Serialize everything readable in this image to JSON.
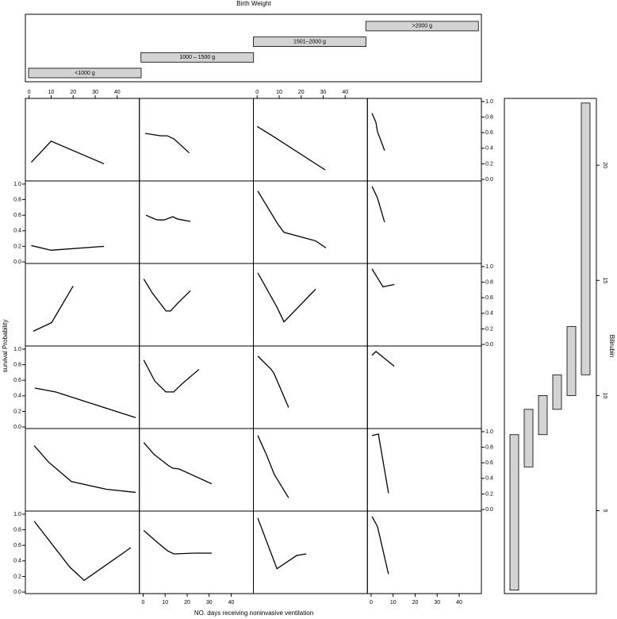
{
  "chart_data": {
    "type": "line",
    "xlabel": "NO. days receiving noninvasive ventilation",
    "ylabel": "survival Probability",
    "xlim": [
      -1.7,
      50.1
    ],
    "xticks": [
      0,
      10,
      20,
      30,
      40
    ],
    "ylim": [
      -0.02,
      1.04
    ],
    "yticks": [
      {
        "value": 0,
        "label": "0.0"
      },
      {
        "value": 0.2,
        "label": "0.2"
      },
      {
        "value": 0.4,
        "label": "0.4"
      },
      {
        "value": 0.6,
        "label": "0.6"
      },
      {
        "value": 0.8,
        "label": "0.8"
      },
      {
        "value": 1,
        "label": "1.0"
      }
    ],
    "color": "#000000",
    "panels": [
      [
        {
          "x": [
            1,
            10,
            34
          ],
          "values": [
            0.22,
            0.49,
            0.2
          ]
        },
        {
          "x": [
            1,
            8,
            11,
            14,
            21
          ],
          "values": [
            0.59,
            0.56,
            0.56,
            0.52,
            0.34
          ]
        },
        {
          "x": [
            0,
            8,
            31
          ],
          "values": [
            0.68,
            0.54,
            0.12
          ]
        },
        {
          "x": [
            0.4,
            2.2,
            2.9,
            4.3,
            6.1
          ],
          "values": [
            0.85,
            0.73,
            0.61,
            0.51,
            0.37
          ]
        }
      ],
      [
        {
          "x": [
            1,
            10,
            34
          ],
          "values": [
            0.21,
            0.15,
            0.2
          ]
        },
        {
          "x": [
            1.3,
            4.6,
            6.4,
            9.6,
            13.5,
            15.7,
            21.5
          ],
          "values": [
            0.6,
            0.56,
            0.54,
            0.54,
            0.58,
            0.55,
            0.52
          ]
        },
        {
          "x": [
            0.3,
            9.3,
            12.2,
            26.6,
            31.3
          ],
          "values": [
            0.91,
            0.49,
            0.38,
            0.27,
            0.18
          ]
        },
        {
          "x": [
            0.4,
            2.9,
            6.1
          ],
          "values": [
            0.97,
            0.82,
            0.51
          ]
        }
      ],
      [
        {
          "x": [
            1.9,
            10.2,
            20
          ],
          "values": [
            0.17,
            0.28,
            0.75
          ]
        },
        {
          "x": [
            0.3,
            4.2,
            10.4,
            12.5,
            15.7,
            21.5
          ],
          "values": [
            0.84,
            0.66,
            0.43,
            0.43,
            0.53,
            0.69
          ]
        },
        {
          "x": [
            0.3,
            9,
            12.2,
            26.6
          ],
          "values": [
            0.92,
            0.48,
            0.29,
            0.71
          ]
        },
        {
          "x": [
            0.4,
            5.4,
            10.5
          ],
          "values": [
            0.97,
            0.74,
            0.77
          ]
        }
      ],
      [
        {
          "x": [
            2.6,
            12,
            48.4
          ],
          "values": [
            0.5,
            0.45,
            0.12
          ]
        },
        {
          "x": [
            0.3,
            5.3,
            10.3,
            13.9,
            17.9,
            25.4
          ],
          "values": [
            0.86,
            0.59,
            0.45,
            0.45,
            0.56,
            0.74
          ]
        },
        {
          "x": [
            0.3,
            6.4,
            7.8,
            14.3
          ],
          "values": [
            0.91,
            0.74,
            0.68,
            0.25
          ]
        },
        {
          "x": [
            0.4,
            2.2,
            10.5
          ],
          "values": [
            0.92,
            0.97,
            0.78
          ]
        }
      ],
      [
        {
          "x": [
            2.3,
            8.8,
            19.2,
            35.1,
            48.4
          ],
          "values": [
            0.82,
            0.61,
            0.36,
            0.26,
            0.22
          ]
        },
        {
          "x": [
            0.3,
            4.9,
            11.7,
            13.5,
            16.4,
            31.2
          ],
          "values": [
            0.86,
            0.71,
            0.56,
            0.53,
            0.52,
            0.33
          ]
        },
        {
          "x": [
            0.3,
            4.3,
            7.8,
            14.3
          ],
          "values": [
            0.95,
            0.7,
            0.45,
            0.15
          ]
        },
        {
          "x": [
            0.4,
            3.3,
            7.9
          ],
          "values": [
            0.95,
            0.97,
            0.21
          ]
        }
      ],
      [
        {
          "x": [
            2.3,
            18.5,
            25,
            46.2
          ],
          "values": [
            0.91,
            0.32,
            0.15,
            0.57
          ]
        },
        {
          "x": [
            0.3,
            6.8,
            11.1,
            14,
            23.4,
            31.2
          ],
          "values": [
            0.79,
            0.63,
            0.53,
            0.49,
            0.5,
            0.5
          ]
        },
        {
          "x": [
            0.3,
            9,
            18,
            22.3
          ],
          "values": [
            0.95,
            0.3,
            0.47,
            0.49
          ]
        },
        {
          "x": [
            0.4,
            2.9,
            7.9
          ],
          "values": [
            0.97,
            0.84,
            0.23
          ]
        }
      ]
    ],
    "given_columns": {
      "title": "Birth Weight",
      "categories": [
        "<1000 g",
        "1000 – 1500 g",
        "1501–2000 g",
        ">2000 g"
      ],
      "color": "#d3d3d3"
    },
    "given_rows": {
      "label": "Bilirubin",
      "ylim": [
        1.4,
        22.9
      ],
      "yticks": [
        5,
        10,
        15,
        20
      ],
      "color": "#d3d3d3",
      "intervals": [
        [
          1.55,
          8.3
        ],
        [
          6.9,
          9.4
        ],
        [
          8.3,
          10
        ],
        [
          9.4,
          10.9
        ],
        [
          10,
          13
        ],
        [
          10.9,
          22.7
        ]
      ]
    }
  }
}
